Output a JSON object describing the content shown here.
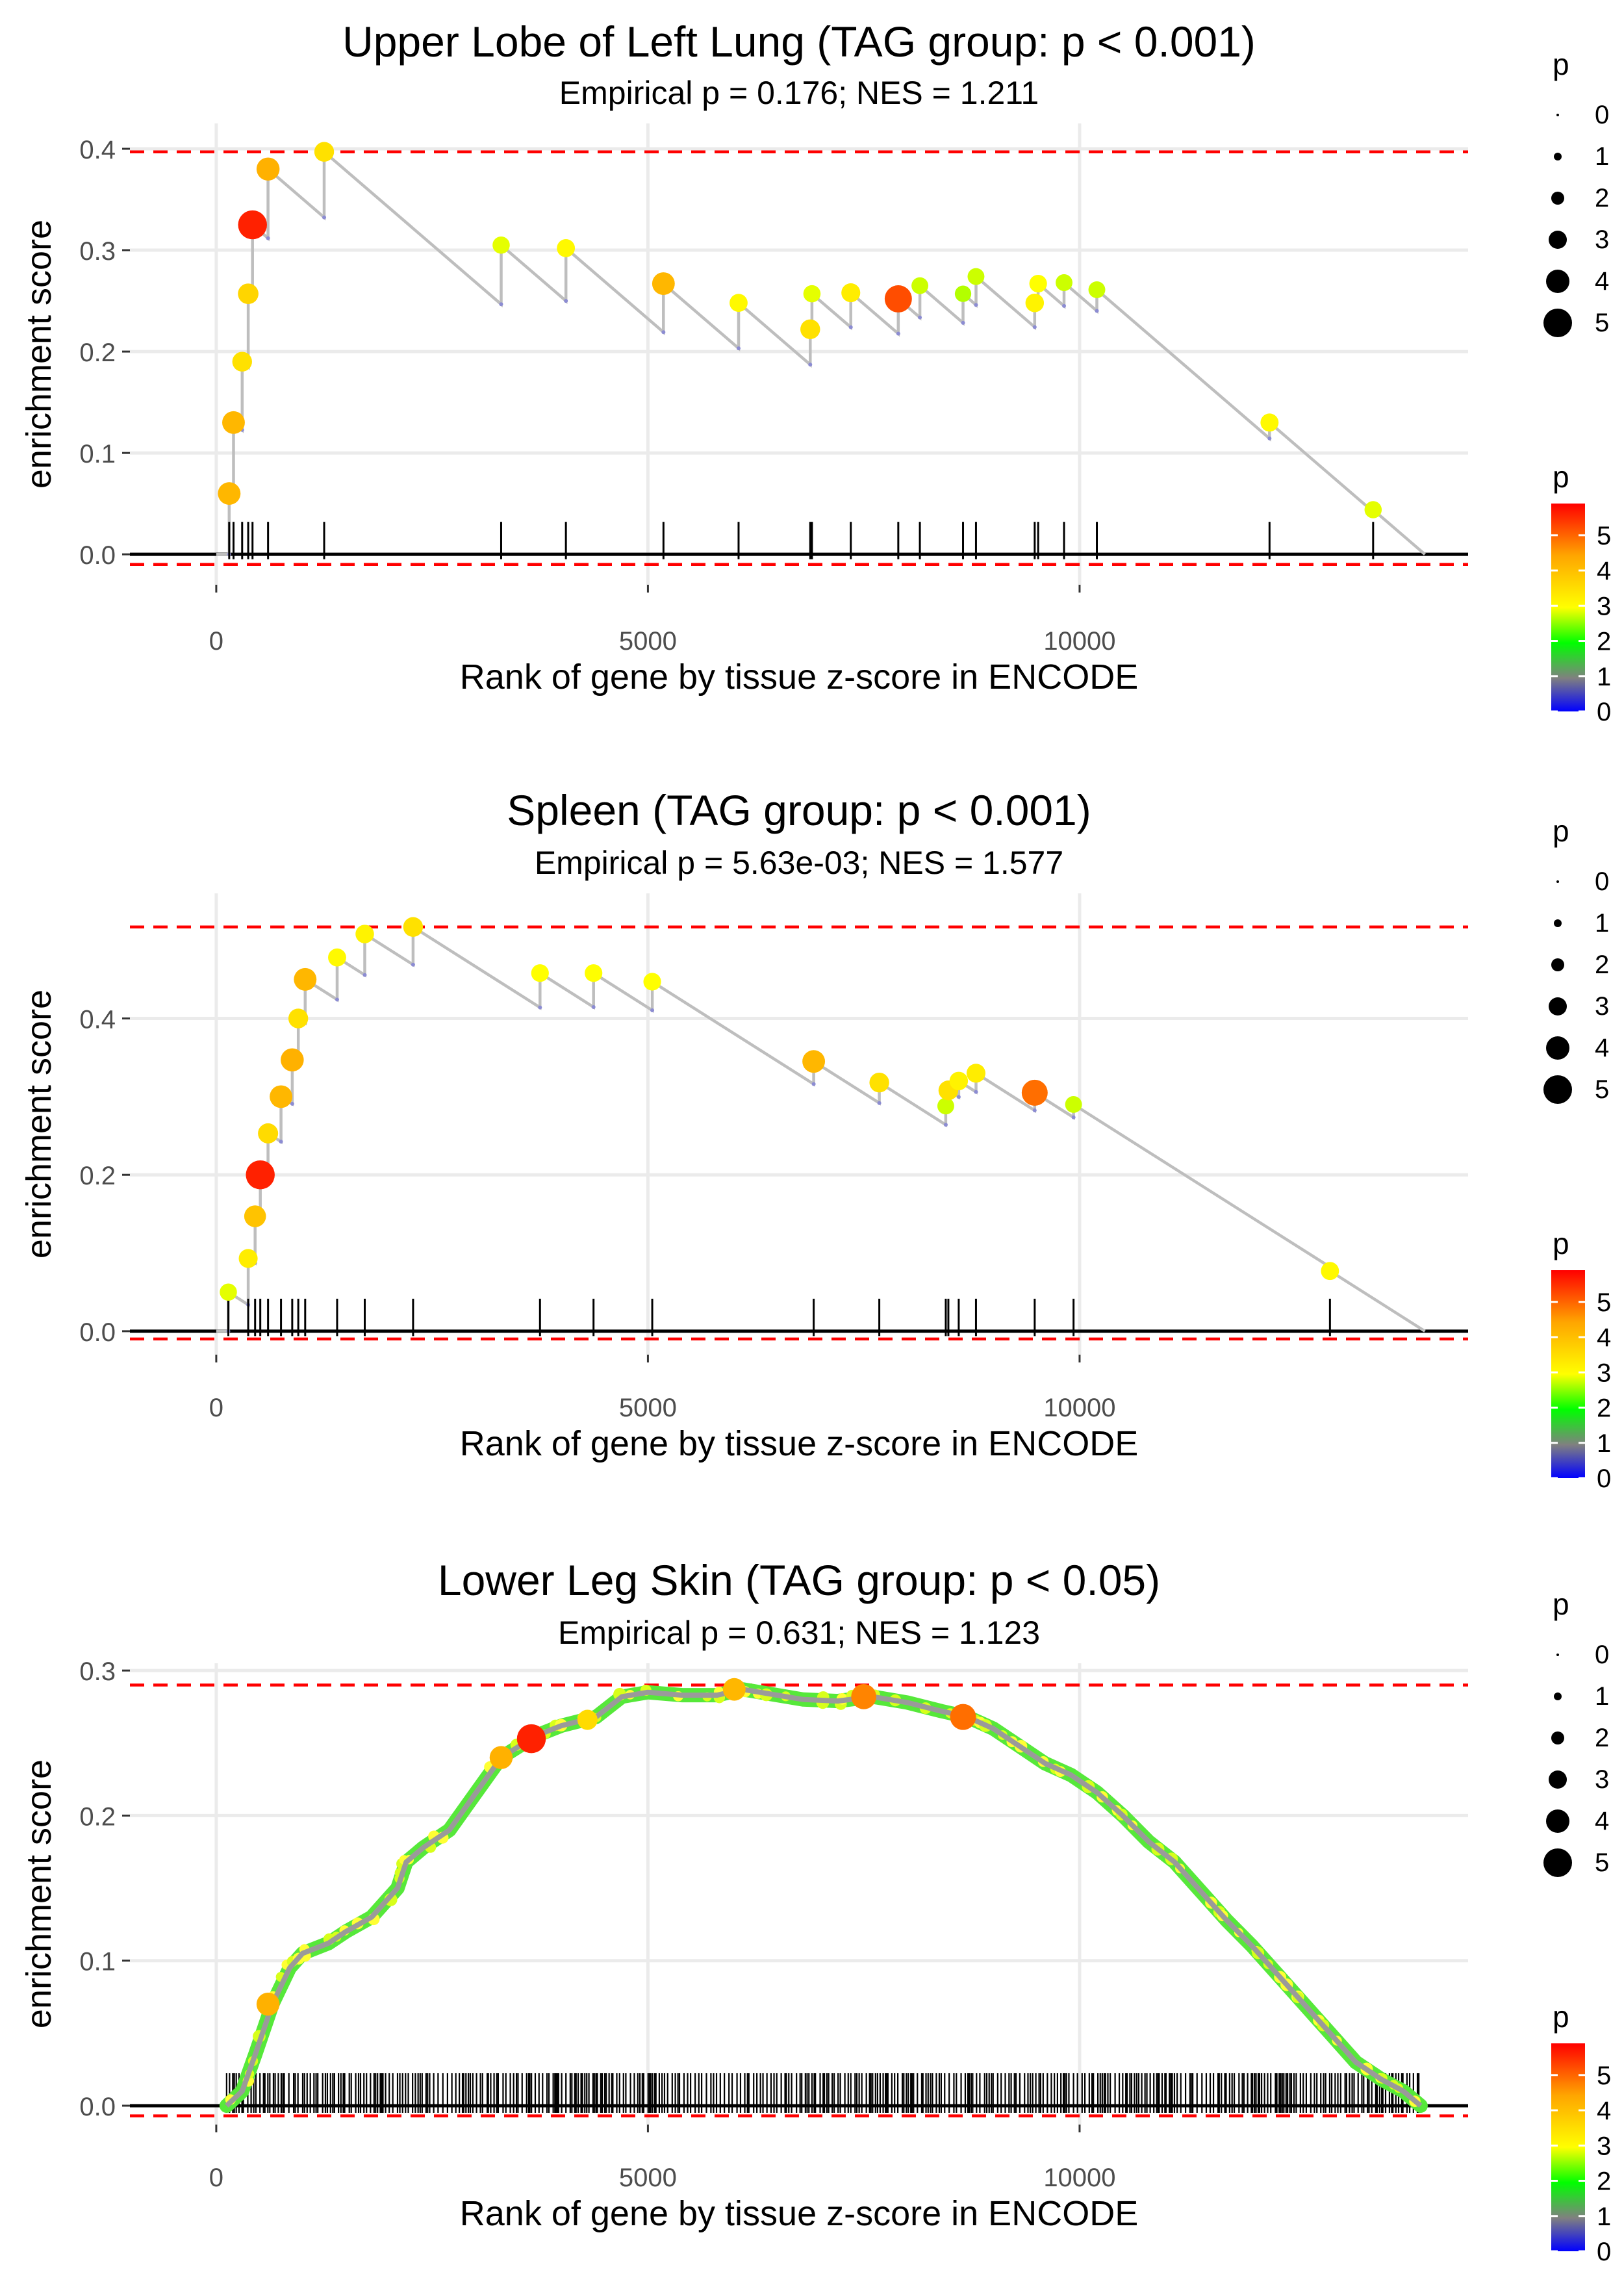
{
  "chart_data": [
    {
      "type": "line",
      "id": "upper-lobe-left-lung",
      "title": "Upper Lobe of Left Lung (TAG group: p < 0.001)",
      "subtitle": "Empirical p = 0.176; NES = 1.211",
      "xlabel": "Rank of gene by tissue z-score in ENCODE",
      "ylabel": "enrichment score",
      "xlim": [
        -1000,
        14500
      ],
      "ylim": [
        -0.03,
        0.425
      ],
      "xticks": [
        0,
        5000,
        10000
      ],
      "xtick_labels": [
        "0",
        "5000",
        "10000"
      ],
      "yticks": [
        0,
        0.1,
        0.2,
        0.3,
        0.4
      ],
      "ytick_labels": [
        "0.0",
        "0.1",
        "0.2",
        "0.3",
        "0.4"
      ],
      "max_es": 0.397,
      "min_es": -0.01,
      "n_genes": 14000,
      "hits": [
        {
          "rank": 150,
          "es": 0.06,
          "p": 4.2
        },
        {
          "rank": 200,
          "es": 0.13,
          "p": 4.2
        },
        {
          "rank": 300,
          "es": 0.19,
          "p": 3.5
        },
        {
          "rank": 370,
          "es": 0.257,
          "p": 3.7
        },
        {
          "rank": 420,
          "es": 0.325,
          "p": 5.7
        },
        {
          "rank": 600,
          "es": 0.38,
          "p": 4.3
        },
        {
          "rank": 1250,
          "es": 0.397,
          "p": 3.5
        },
        {
          "rank": 3300,
          "es": 0.305,
          "p": 2.9
        },
        {
          "rank": 4050,
          "es": 0.302,
          "p": 3.1
        },
        {
          "rank": 5180,
          "es": 0.267,
          "p": 4.2
        },
        {
          "rank": 6050,
          "es": 0.248,
          "p": 3.1
        },
        {
          "rank": 6880,
          "es": 0.222,
          "p": 3.5
        },
        {
          "rank": 6900,
          "es": 0.257,
          "p": 2.9
        },
        {
          "rank": 7350,
          "es": 0.258,
          "p": 3.3
        },
        {
          "rank": 7900,
          "es": 0.252,
          "p": 5.3
        },
        {
          "rank": 8150,
          "es": 0.265,
          "p": 2.8
        },
        {
          "rank": 8650,
          "es": 0.257,
          "p": 2.7
        },
        {
          "rank": 8800,
          "es": 0.274,
          "p": 2.8
        },
        {
          "rank": 9480,
          "es": 0.248,
          "p": 3.2
        },
        {
          "rank": 9520,
          "es": 0.267,
          "p": 3.0
        },
        {
          "rank": 9820,
          "es": 0.268,
          "p": 2.8
        },
        {
          "rank": 10200,
          "es": 0.261,
          "p": 2.8
        },
        {
          "rank": 12200,
          "es": 0.13,
          "p": 3.1
        },
        {
          "rank": 13400,
          "es": 0.044,
          "p": 2.9
        }
      ]
    },
    {
      "type": "line",
      "id": "spleen",
      "title": "Spleen (TAG group: p < 0.001)",
      "subtitle": "Empirical p = 5.63e-03; NES = 1.577",
      "xlabel": "Rank of gene by tissue z-score in ENCODE",
      "ylabel": "enrichment score",
      "xlim": [
        -1000,
        14500
      ],
      "ylim": [
        -0.03,
        0.56
      ],
      "xticks": [
        0,
        5000,
        10000
      ],
      "xtick_labels": [
        "0",
        "5000",
        "10000"
      ],
      "yticks": [
        0,
        0.2,
        0.4
      ],
      "ytick_labels": [
        "0.0",
        "0.2",
        "0.4"
      ],
      "max_es": 0.517,
      "min_es": -0.01,
      "n_genes": 14000,
      "hits": [
        {
          "rank": 140,
          "es": 0.05,
          "p": 2.9
        },
        {
          "rank": 370,
          "es": 0.093,
          "p": 3.3
        },
        {
          "rank": 450,
          "es": 0.147,
          "p": 4.0
        },
        {
          "rank": 510,
          "es": 0.2,
          "p": 5.7
        },
        {
          "rank": 600,
          "es": 0.253,
          "p": 3.6
        },
        {
          "rank": 750,
          "es": 0.3,
          "p": 4.2
        },
        {
          "rank": 880,
          "es": 0.347,
          "p": 4.3
        },
        {
          "rank": 950,
          "es": 0.4,
          "p": 3.5
        },
        {
          "rank": 1030,
          "es": 0.45,
          "p": 4.2
        },
        {
          "rank": 1400,
          "es": 0.478,
          "p": 3.1
        },
        {
          "rank": 1720,
          "es": 0.508,
          "p": 3.2
        },
        {
          "rank": 2280,
          "es": 0.517,
          "p": 3.5
        },
        {
          "rank": 3750,
          "es": 0.458,
          "p": 3.0
        },
        {
          "rank": 4370,
          "es": 0.458,
          "p": 3.0
        },
        {
          "rank": 5050,
          "es": 0.447,
          "p": 3.0
        },
        {
          "rank": 6920,
          "es": 0.345,
          "p": 4.2
        },
        {
          "rank": 7680,
          "es": 0.318,
          "p": 3.5
        },
        {
          "rank": 8450,
          "es": 0.288,
          "p": 2.8
        },
        {
          "rank": 8480,
          "es": 0.308,
          "p": 3.5
        },
        {
          "rank": 8600,
          "es": 0.32,
          "p": 3.2
        },
        {
          "rank": 8800,
          "es": 0.33,
          "p": 3.3
        },
        {
          "rank": 9480,
          "es": 0.305,
          "p": 5.0
        },
        {
          "rank": 9930,
          "es": 0.29,
          "p": 2.8
        },
        {
          "rank": 12900,
          "es": 0.077,
          "p": 3.1
        }
      ]
    },
    {
      "type": "line",
      "id": "lower-leg-skin",
      "title": "Lower Leg Skin (TAG group: p < 0.05)",
      "subtitle": "Empirical p = 0.631; NES = 1.123",
      "xlabel": "Rank of gene by tissue z-score in ENCODE",
      "ylabel": "enrichment score",
      "xlim": [
        -1000,
        14500
      ],
      "ylim": [
        -0.013,
        0.305
      ],
      "xticks": [
        0,
        5000,
        10000
      ],
      "xtick_labels": [
        "0",
        "5000",
        "10000"
      ],
      "yticks": [
        0,
        0.1,
        0.2,
        0.3
      ],
      "ytick_labels": [
        "0.0",
        "0.1",
        "0.2",
        "0.3"
      ],
      "max_es": 0.29,
      "min_es": -0.007,
      "n_genes": 14000,
      "dense_curve": [
        [
          120,
          0
        ],
        [
          300,
          0.01
        ],
        [
          450,
          0.035
        ],
        [
          650,
          0.07
        ],
        [
          850,
          0.095
        ],
        [
          1000,
          0.105
        ],
        [
          1300,
          0.112
        ],
        [
          1500,
          0.12
        ],
        [
          1800,
          0.13
        ],
        [
          2100,
          0.15
        ],
        [
          2200,
          0.168
        ],
        [
          2400,
          0.178
        ],
        [
          2700,
          0.19
        ],
        [
          3000,
          0.215
        ],
        [
          3300,
          0.24
        ],
        [
          3700,
          0.255
        ],
        [
          4000,
          0.262
        ],
        [
          4400,
          0.268
        ],
        [
          4700,
          0.282
        ],
        [
          5000,
          0.285
        ],
        [
          5400,
          0.283
        ],
        [
          5800,
          0.283
        ],
        [
          6100,
          0.287
        ],
        [
          6400,
          0.284
        ],
        [
          6800,
          0.28
        ],
        [
          7200,
          0.279
        ],
        [
          7600,
          0.282
        ],
        [
          8000,
          0.278
        ],
        [
          8400,
          0.272
        ],
        [
          8700,
          0.268
        ],
        [
          9000,
          0.26
        ],
        [
          9300,
          0.248
        ],
        [
          9600,
          0.236
        ],
        [
          9900,
          0.228
        ],
        [
          10200,
          0.216
        ],
        [
          10500,
          0.2
        ],
        [
          10800,
          0.182
        ],
        [
          11100,
          0.168
        ],
        [
          11400,
          0.148
        ],
        [
          11700,
          0.128
        ],
        [
          12000,
          0.11
        ],
        [
          12300,
          0.09
        ],
        [
          12600,
          0.07
        ],
        [
          12900,
          0.05
        ],
        [
          13200,
          0.03
        ],
        [
          13500,
          0.018
        ],
        [
          13750,
          0.01
        ],
        [
          13950,
          0
        ]
      ],
      "highlight_points": [
        {
          "rank": 600,
          "es": 0.07,
          "p": 4.3
        },
        {
          "rank": 3300,
          "es": 0.24,
          "p": 4.3
        },
        {
          "rank": 3650,
          "es": 0.253,
          "p": 5.7
        },
        {
          "rank": 4300,
          "es": 0.266,
          "p": 3.6
        },
        {
          "rank": 6000,
          "es": 0.287,
          "p": 4.2
        },
        {
          "rank": 7500,
          "es": 0.282,
          "p": 4.8
        },
        {
          "rank": 8650,
          "es": 0.268,
          "p": 5.0
        }
      ],
      "ticks_range": [
        120,
        13950
      ]
    }
  ],
  "legends": {
    "size_title": "p",
    "size_labels": [
      "0",
      "1",
      "2",
      "3",
      "4",
      "5"
    ],
    "color_title": "p",
    "color_labels": [
      "5",
      "4",
      "3",
      "2",
      "1",
      "0"
    ]
  },
  "colors": {
    "reference_line": "#ff0000",
    "path": "#bebebe",
    "zero_line": "#000000",
    "grid": "#ebebeb",
    "scale": [
      "#0000ff",
      "#808080",
      "#00ff00",
      "#ffff00",
      "#ffa500",
      "#ff0000"
    ]
  }
}
